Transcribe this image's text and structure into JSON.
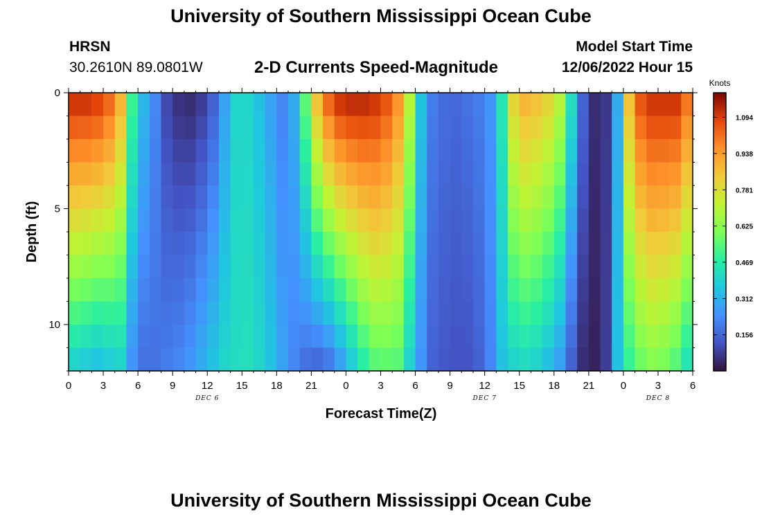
{
  "header": {
    "title": "University of Southern Mississippi Ocean Cube",
    "station": "HRSN",
    "coordinates": "30.2610N  89.0801W",
    "subtitle": "2-D Currents Speed-Magnitude",
    "start_label": "Model Start Time",
    "start_value": "12/06/2022 Hour 15"
  },
  "footer": {
    "title": "University of Southern Mississippi Ocean Cube"
  },
  "chart_data": {
    "type": "heatmap",
    "title": "2-D Currents Speed-Magnitude",
    "xlabel": "Forecast Time(Z)",
    "ylabel": "Depth (ft)",
    "x_range_hours": [
      0,
      54
    ],
    "x_ticks": [
      {
        "hour": 0,
        "label": "0"
      },
      {
        "hour": 3,
        "label": "3"
      },
      {
        "hour": 6,
        "label": "6"
      },
      {
        "hour": 9,
        "label": "9"
      },
      {
        "hour": 12,
        "label": "12"
      },
      {
        "hour": 15,
        "label": "15"
      },
      {
        "hour": 18,
        "label": "18"
      },
      {
        "hour": 21,
        "label": "21"
      },
      {
        "hour": 24,
        "label": "0"
      },
      {
        "hour": 27,
        "label": "3"
      },
      {
        "hour": 30,
        "label": "6"
      },
      {
        "hour": 33,
        "label": "9"
      },
      {
        "hour": 36,
        "label": "12"
      },
      {
        "hour": 39,
        "label": "15"
      },
      {
        "hour": 42,
        "label": "18"
      },
      {
        "hour": 45,
        "label": "21"
      },
      {
        "hour": 48,
        "label": "0"
      },
      {
        "hour": 51,
        "label": "3"
      },
      {
        "hour": 54,
        "label": "6"
      }
    ],
    "day_labels": [
      {
        "hour": 12,
        "label": "DEC 6"
      },
      {
        "hour": 36,
        "label": "DEC 7"
      },
      {
        "hour": 51,
        "label": "DEC 8"
      }
    ],
    "y_range_ft": [
      0,
      12
    ],
    "y_ticks": [
      {
        "depth": 0,
        "label": "0"
      },
      {
        "depth": 5,
        "label": "5"
      },
      {
        "depth": 10,
        "label": "10"
      }
    ],
    "colorbar": {
      "unit": "Knots",
      "min": 0,
      "max": 1.2,
      "ticks": [
        0.156,
        0.312,
        0.469,
        0.625,
        0.781,
        0.938,
        1.094
      ],
      "tick_labels": [
        "0.156",
        "0.312",
        "0.469",
        "0.625",
        "0.781",
        "0.938",
        "1.094"
      ]
    },
    "depth_bins": 12,
    "time_hours": [
      0,
      1,
      2,
      3,
      4,
      5,
      6,
      7,
      8,
      9,
      10,
      11,
      12,
      13,
      14,
      15,
      16,
      17,
      18,
      19,
      20,
      21,
      22,
      23,
      24,
      25,
      26,
      27,
      28,
      29,
      30,
      31,
      32,
      33,
      34,
      35,
      36,
      37,
      38,
      39,
      40,
      41,
      42,
      43,
      44,
      45,
      46,
      47,
      48,
      49,
      50,
      51,
      52,
      53
    ],
    "surface_speed": [
      1.1,
      1.1,
      1.08,
      1.02,
      0.88,
      0.5,
      0.32,
      0.22,
      0.1,
      0.06,
      0.05,
      0.08,
      0.15,
      0.28,
      0.4,
      0.4,
      0.35,
      0.28,
      0.22,
      0.3,
      0.55,
      0.85,
      1.02,
      1.1,
      1.12,
      1.12,
      1.1,
      1.05,
      0.95,
      0.7,
      0.35,
      0.2,
      0.17,
      0.16,
      0.18,
      0.2,
      0.25,
      0.45,
      0.8,
      0.88,
      0.85,
      0.8,
      0.7,
      0.42,
      0.15,
      0.05,
      0.07,
      0.3,
      0.85,
      1.05,
      1.1,
      1.1,
      1.1,
      1.0
    ],
    "bottom_speed": [
      0.4,
      0.38,
      0.36,
      0.38,
      0.4,
      0.25,
      0.18,
      0.18,
      0.2,
      0.22,
      0.25,
      0.3,
      0.35,
      0.4,
      0.42,
      0.43,
      0.4,
      0.35,
      0.28,
      0.22,
      0.18,
      0.17,
      0.2,
      0.28,
      0.38,
      0.48,
      0.55,
      0.56,
      0.55,
      0.4,
      0.25,
      0.15,
      0.13,
      0.12,
      0.12,
      0.15,
      0.22,
      0.35,
      0.4,
      0.42,
      0.4,
      0.35,
      0.28,
      0.15,
      0.05,
      0.03,
      0.08,
      0.35,
      0.5,
      0.58,
      0.62,
      0.6,
      0.55,
      0.45
    ]
  }
}
